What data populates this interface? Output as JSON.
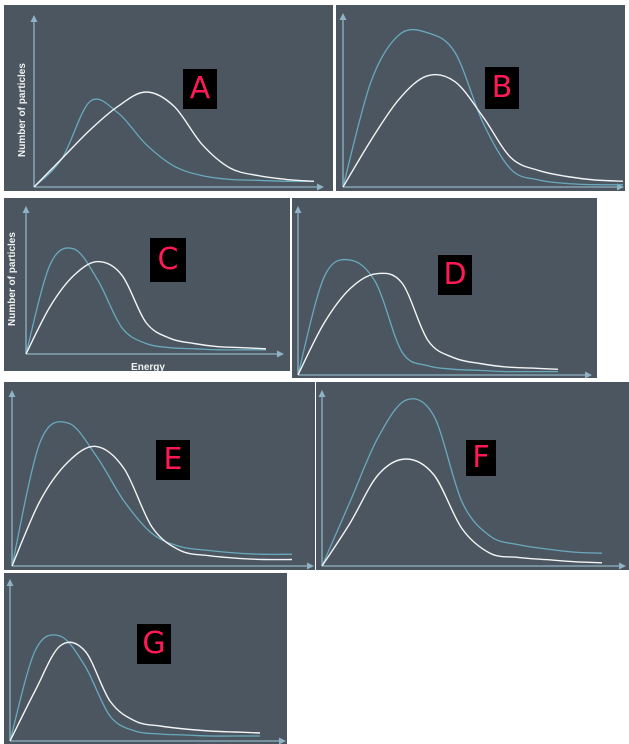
{
  "chart_data": [
    {
      "type": "line",
      "panel": "A",
      "ylabel": "Number of particles",
      "xlabel": "",
      "series": [
        {
          "color": "#6aa9bd",
          "x": [
            0,
            1,
            2,
            3,
            4,
            5,
            6,
            7,
            8,
            9,
            10
          ],
          "y": [
            0,
            30,
            90,
            78,
            45,
            22,
            12,
            8,
            7,
            6,
            6
          ]
        },
        {
          "color": "#f2f4f5",
          "x": [
            0,
            1,
            2,
            3,
            4,
            5,
            6,
            7,
            8,
            9,
            10
          ],
          "y": [
            0,
            30,
            60,
            85,
            100,
            85,
            45,
            20,
            12,
            8,
            6
          ]
        }
      ]
    },
    {
      "type": "line",
      "panel": "B",
      "ylabel": "",
      "xlabel": "",
      "series": [
        {
          "color": "#6aa9bd",
          "x": [
            0,
            1,
            2,
            3,
            4,
            5,
            6,
            7,
            8,
            9,
            10
          ],
          "y": [
            0,
            90,
            130,
            132,
            115,
            55,
            15,
            6,
            3,
            2,
            2
          ]
        },
        {
          "color": "#f2f4f5",
          "x": [
            0,
            1,
            2,
            3,
            4,
            5,
            6,
            7,
            8,
            9,
            10
          ],
          "y": [
            0,
            40,
            75,
            95,
            90,
            60,
            25,
            14,
            9,
            6,
            5
          ]
        }
      ]
    },
    {
      "type": "line",
      "panel": "C",
      "ylabel": "Number of particles",
      "xlabel": "Energy",
      "series": [
        {
          "color": "#6aa9bd",
          "x": [
            0,
            1,
            2,
            3,
            4,
            5,
            6,
            7,
            8,
            9,
            10
          ],
          "y": [
            0,
            85,
            100,
            70,
            25,
            10,
            6,
            5,
            4,
            4,
            4
          ]
        },
        {
          "color": "#f2f4f5",
          "x": [
            0,
            1,
            2,
            3,
            4,
            5,
            6,
            7,
            8,
            9,
            10
          ],
          "y": [
            0,
            45,
            75,
            88,
            75,
            30,
            15,
            10,
            7,
            6,
            5
          ]
        }
      ]
    },
    {
      "type": "line",
      "panel": "D",
      "ylabel": "",
      "xlabel": "",
      "series": [
        {
          "color": "#6aa9bd",
          "x": [
            0,
            1,
            2,
            3,
            4,
            5,
            6,
            7,
            8,
            9,
            10
          ],
          "y": [
            0,
            85,
            100,
            80,
            20,
            8,
            5,
            4,
            3,
            3,
            3
          ]
        },
        {
          "color": "#f2f4f5",
          "x": [
            0,
            1,
            2,
            3,
            4,
            5,
            6,
            7,
            8,
            9,
            10
          ],
          "y": [
            0,
            45,
            75,
            88,
            80,
            30,
            15,
            10,
            7,
            6,
            5
          ]
        }
      ]
    },
    {
      "type": "line",
      "panel": "E",
      "ylabel": "",
      "xlabel": "",
      "series": [
        {
          "color": "#6aa9bd",
          "x": [
            0,
            1,
            2,
            3,
            4,
            5,
            6,
            7,
            8,
            9,
            10
          ],
          "y": [
            0,
            95,
            110,
            85,
            50,
            25,
            15,
            12,
            10,
            9,
            9
          ]
        },
        {
          "color": "#f2f4f5",
          "x": [
            0,
            1,
            2,
            3,
            4,
            5,
            6,
            7,
            8,
            9,
            10
          ],
          "y": [
            0,
            50,
            80,
            92,
            75,
            30,
            12,
            8,
            6,
            5,
            5
          ]
        }
      ]
    },
    {
      "type": "line",
      "panel": "F",
      "ylabel": "",
      "xlabel": "",
      "series": [
        {
          "color": "#6aa9bd",
          "x": [
            0,
            1,
            2,
            3,
            4,
            5,
            6,
            7,
            8,
            9,
            10
          ],
          "y": [
            0,
            60,
            120,
            155,
            140,
            60,
            28,
            20,
            16,
            13,
            12
          ]
        },
        {
          "color": "#f2f4f5",
          "x": [
            0,
            1,
            2,
            3,
            4,
            5,
            6,
            7,
            8,
            9,
            10
          ],
          "y": [
            0,
            40,
            85,
            100,
            85,
            35,
            12,
            8,
            6,
            4,
            3
          ]
        }
      ]
    },
    {
      "type": "line",
      "panel": "G",
      "ylabel": "",
      "xlabel": "",
      "series": [
        {
          "color": "#6aa9bd",
          "x": [
            0,
            1,
            2,
            3,
            4,
            5,
            6,
            7,
            8,
            9,
            10
          ],
          "y": [
            0,
            90,
            105,
            75,
            25,
            10,
            7,
            6,
            5,
            5,
            5
          ]
        },
        {
          "color": "#f2f4f5",
          "x": [
            0,
            1,
            2,
            3,
            4,
            5,
            6,
            7,
            8,
            9,
            10
          ],
          "y": [
            0,
            50,
            95,
            90,
            40,
            20,
            15,
            12,
            10,
            9,
            8
          ]
        }
      ]
    }
  ],
  "labels": {
    "A": "A",
    "B": "B",
    "C": "C",
    "D": "D",
    "E": "E",
    "F": "F",
    "G": "G"
  },
  "colors": {
    "panel_bg": "#4b5660",
    "axis": "#8fb3c4",
    "letter_bg": "#000000",
    "letter_fg": "#ff1a55"
  }
}
